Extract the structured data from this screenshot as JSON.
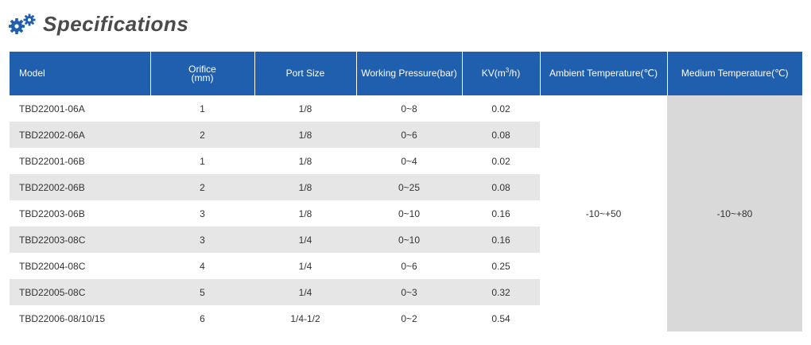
{
  "header": {
    "title": "Specifications",
    "icon": "gears-icon",
    "icon_color": "#1f5fae"
  },
  "table": {
    "header_color": "#1f5fae",
    "columns": {
      "model": "Model",
      "orifice_line1": "Orifice",
      "orifice_line2": "(mm)",
      "port_size": "Port Size",
      "working_pressure": "Working Pressure(bar)",
      "kv_prefix": "KV(m",
      "kv_sup": "3",
      "kv_suffix": "/h)",
      "ambient_temp": "Ambient Temperature(℃)",
      "medium_temp": "Medium Temperature(℃)"
    },
    "rows": [
      {
        "model": "TBD22001-06A",
        "orifice": "1",
        "port": "1/8",
        "pressure": "0~8",
        "kv": "0.02"
      },
      {
        "model": "TBD22002-06A",
        "orifice": "2",
        "port": "1/8",
        "pressure": "0~6",
        "kv": "0.08"
      },
      {
        "model": "TBD22001-06B",
        "orifice": "1",
        "port": "1/8",
        "pressure": "0~4",
        "kv": "0.02"
      },
      {
        "model": "TBD22002-06B",
        "orifice": "2",
        "port": "1/8",
        "pressure": "0~25",
        "kv": "0.08"
      },
      {
        "model": "TBD22003-06B",
        "orifice": "3",
        "port": "1/8",
        "pressure": "0~10",
        "kv": "0.16"
      },
      {
        "model": "TBD22003-08C",
        "orifice": "3",
        "port": "1/4",
        "pressure": "0~10",
        "kv": "0.16"
      },
      {
        "model": "TBD22004-08C",
        "orifice": "4",
        "port": "1/4",
        "pressure": "0~6",
        "kv": "0.25"
      },
      {
        "model": "TBD22005-08C",
        "orifice": "5",
        "port": "1/4",
        "pressure": "0~3",
        "kv": "0.32"
      },
      {
        "model": "TBD22006-08/10/15",
        "orifice": "6",
        "port": "1/4-1/2",
        "pressure": "0~2",
        "kv": "0.54"
      }
    ],
    "ambient_temperature": "-10~+50",
    "medium_temperature": "-10~+80"
  }
}
